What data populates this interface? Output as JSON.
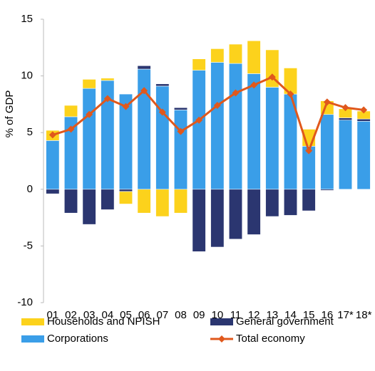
{
  "chart_data": {
    "type": "bar",
    "stacked": true,
    "y_label": "% of GDP",
    "categories": [
      "01",
      "02",
      "03",
      "04",
      "05",
      "06",
      "07",
      "08",
      "09",
      "10",
      "11",
      "12",
      "13",
      "14",
      "15",
      "16",
      "17*",
      "18*"
    ],
    "series": [
      {
        "name": "Corporations",
        "type": "bar",
        "color": "#3a9ee8",
        "values": [
          4.3,
          6.4,
          8.9,
          9.6,
          8.4,
          10.6,
          9.1,
          7.0,
          10.5,
          11.2,
          11.1,
          10.2,
          9.0,
          8.4,
          3.8,
          6.6,
          6.1,
          6.0
        ]
      },
      {
        "name": "General government",
        "type": "bar",
        "color": "#2b3670",
        "values": [
          -0.4,
          -2.1,
          -3.1,
          -1.8,
          -0.2,
          0.3,
          0.2,
          0.2,
          -5.5,
          -5.1,
          -4.4,
          -4.0,
          -2.4,
          -2.3,
          -1.9,
          -0.1,
          0.2,
          0.2
        ]
      },
      {
        "name": "Households and NPISH",
        "type": "bar",
        "color": "#fcd21c",
        "values": [
          0.9,
          1.0,
          0.8,
          0.2,
          -1.1,
          -2.1,
          -2.4,
          -2.1,
          1.0,
          1.2,
          1.7,
          2.9,
          3.3,
          2.3,
          1.5,
          1.2,
          0.8,
          0.7
        ]
      },
      {
        "name": "Total economy",
        "type": "line",
        "color": "#e0581c",
        "values": [
          4.8,
          5.3,
          6.6,
          8.0,
          7.3,
          8.7,
          6.8,
          5.1,
          6.1,
          7.4,
          8.5,
          9.2,
          9.9,
          8.4,
          3.4,
          7.7,
          7.2,
          7.0
        ]
      }
    ],
    "ylim": [
      -10,
      15
    ],
    "yticks": [
      -10,
      -5,
      0,
      5,
      10,
      15
    ],
    "grid": false
  }
}
